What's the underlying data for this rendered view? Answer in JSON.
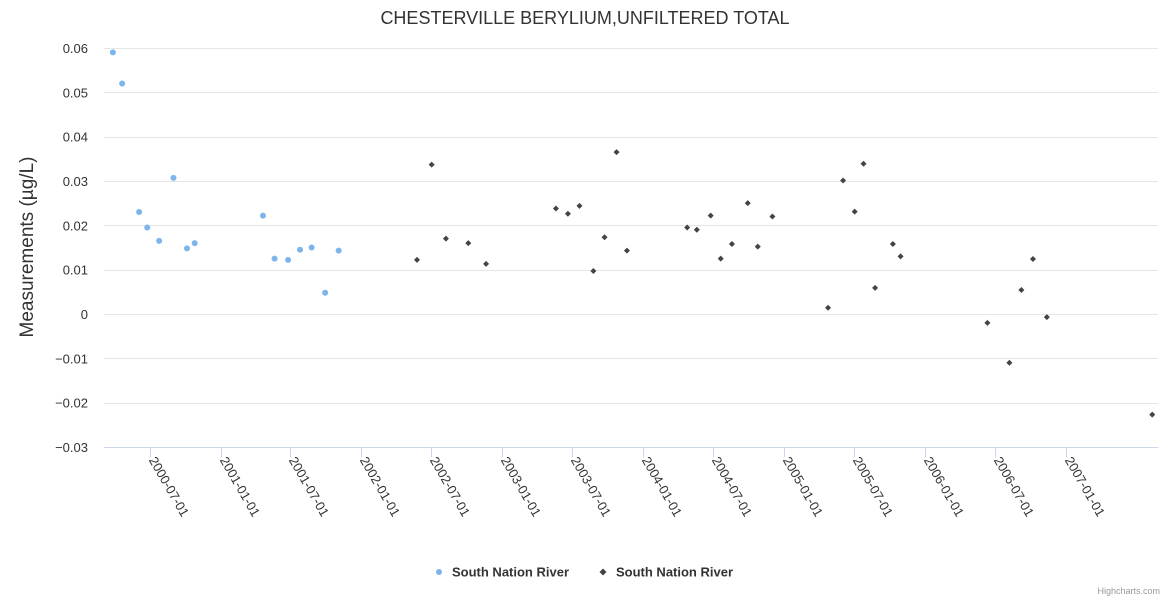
{
  "chart_data": {
    "type": "scatter",
    "title": "CHESTERVILLE BERYLIUM,UNFILTERED TOTAL",
    "xlabel": "",
    "ylabel": "Measurements (µg/L)",
    "ylim": [
      -0.03,
      0.06
    ],
    "yticks": [
      "0.06",
      "0.05",
      "0.04",
      "0.03",
      "0.02",
      "0.01",
      "0",
      "−0.01",
      "−0.02",
      "−0.03"
    ],
    "ytick_values": [
      0.06,
      0.05,
      0.04,
      0.03,
      0.02,
      0.01,
      0,
      -0.01,
      -0.02,
      -0.03
    ],
    "xlim": [
      "2000-03-05",
      "2007-08-27"
    ],
    "xticks": [
      "2000-07-01",
      "2001-01-01",
      "2001-07-01",
      "2002-01-01",
      "2002-07-01",
      "2003-01-01",
      "2003-07-01",
      "2004-01-01",
      "2004-07-01",
      "2005-01-01",
      "2005-07-01",
      "2006-01-01",
      "2006-07-01",
      "2007-01-01"
    ],
    "grid": true,
    "legend_position": "bottom-center",
    "series": [
      {
        "name": "South Nation River",
        "marker": "circle",
        "color": "#7cb5ec",
        "points": [
          {
            "x": "2000-03-28",
            "y": 0.059
          },
          {
            "x": "2000-04-21",
            "y": 0.052
          },
          {
            "x": "2000-06-04",
            "y": 0.023
          },
          {
            "x": "2000-06-25",
            "y": 0.0195
          },
          {
            "x": "2000-07-26",
            "y": 0.0165
          },
          {
            "x": "2000-09-01",
            "y": 0.0307
          },
          {
            "x": "2000-10-06",
            "y": 0.0148
          },
          {
            "x": "2000-10-26",
            "y": 0.016
          },
          {
            "x": "2001-04-21",
            "y": 0.0222
          },
          {
            "x": "2001-05-21",
            "y": 0.0125
          },
          {
            "x": "2001-06-25",
            "y": 0.0122
          },
          {
            "x": "2001-07-26",
            "y": 0.0145
          },
          {
            "x": "2001-08-25",
            "y": 0.015
          },
          {
            "x": "2001-09-29",
            "y": 0.0048
          },
          {
            "x": "2001-11-03",
            "y": 0.0143
          }
        ]
      },
      {
        "name": "South Nation River",
        "marker": "diamond",
        "color": "#434348",
        "points": [
          {
            "x": "2002-05-25",
            "y": 0.0122
          },
          {
            "x": "2002-07-02",
            "y": 0.0337
          },
          {
            "x": "2002-08-08",
            "y": 0.017
          },
          {
            "x": "2002-10-05",
            "y": 0.016
          },
          {
            "x": "2002-11-20",
            "y": 0.0113
          },
          {
            "x": "2003-05-20",
            "y": 0.0238
          },
          {
            "x": "2003-06-20",
            "y": 0.0226
          },
          {
            "x": "2003-07-20",
            "y": 0.0244
          },
          {
            "x": "2003-08-25",
            "y": 0.0097
          },
          {
            "x": "2003-09-23",
            "y": 0.0173
          },
          {
            "x": "2003-10-24",
            "y": 0.0365
          },
          {
            "x": "2003-11-20",
            "y": 0.0143
          },
          {
            "x": "2004-04-24",
            "y": 0.0195
          },
          {
            "x": "2004-05-19",
            "y": 0.019
          },
          {
            "x": "2004-06-24",
            "y": 0.0222
          },
          {
            "x": "2004-07-20",
            "y": 0.0125
          },
          {
            "x": "2004-08-18",
            "y": 0.0158
          },
          {
            "x": "2004-09-28",
            "y": 0.025
          },
          {
            "x": "2004-10-24",
            "y": 0.0152
          },
          {
            "x": "2004-12-01",
            "y": 0.022
          },
          {
            "x": "2005-04-24",
            "y": 0.0014
          },
          {
            "x": "2005-06-02",
            "y": 0.0301
          },
          {
            "x": "2005-07-02",
            "y": 0.0231
          },
          {
            "x": "2005-07-25",
            "y": 0.0339
          },
          {
            "x": "2005-08-24",
            "y": 0.0059
          },
          {
            "x": "2005-10-09",
            "y": 0.0158
          },
          {
            "x": "2005-10-29",
            "y": 0.013
          },
          {
            "x": "2006-06-11",
            "y": -0.002
          },
          {
            "x": "2006-08-07",
            "y": -0.011
          },
          {
            "x": "2006-09-07",
            "y": 0.0054
          },
          {
            "x": "2006-10-07",
            "y": 0.0124
          },
          {
            "x": "2006-11-12",
            "y": -0.0007
          },
          {
            "x": "2007-08-12",
            "y": -0.0227
          }
        ]
      }
    ]
  },
  "legend": {
    "items": [
      {
        "label": "South Nation River"
      },
      {
        "label": "South Nation River"
      }
    ]
  },
  "credits": "Highcharts.com"
}
